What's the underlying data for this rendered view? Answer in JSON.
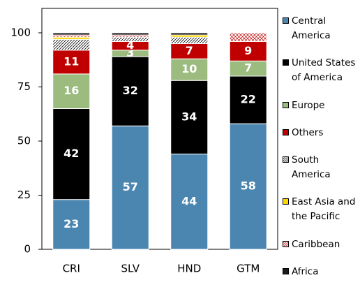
{
  "chart_data": {
    "type": "stacked-bar",
    "categories": [
      "CRI",
      "SLV",
      "HND",
      "GTM"
    ],
    "series": [
      {
        "name": "Central America",
        "color": "#4a86b0",
        "values": [
          23,
          57,
          44,
          58
        ]
      },
      {
        "name": "United States of America",
        "color": "#000000",
        "values": [
          42,
          32,
          34,
          22
        ]
      },
      {
        "name": "Europe",
        "color": "#9bbb7f",
        "values": [
          16,
          3,
          10,
          7
        ]
      },
      {
        "name": "Others",
        "color": "#c00000",
        "values": [
          11,
          4,
          7,
          9
        ]
      },
      {
        "name": "South America",
        "color": "#ffffff",
        "pattern": "hatch",
        "values": [
          5,
          2,
          3,
          0
        ]
      },
      {
        "name": "East Asia and the Pacific",
        "color": "#ffd700",
        "values": [
          1,
          0,
          1,
          0
        ]
      },
      {
        "name": "Caribbean",
        "color": "#ffffff",
        "pattern": "cross",
        "values": [
          1,
          1,
          0,
          4
        ]
      },
      {
        "name": "Africa",
        "color": "#1a1a1a",
        "values": [
          1,
          1,
          1,
          0
        ]
      }
    ],
    "ylim": [
      0,
      100
    ],
    "yticks": [
      0,
      25,
      50,
      75,
      100
    ]
  }
}
